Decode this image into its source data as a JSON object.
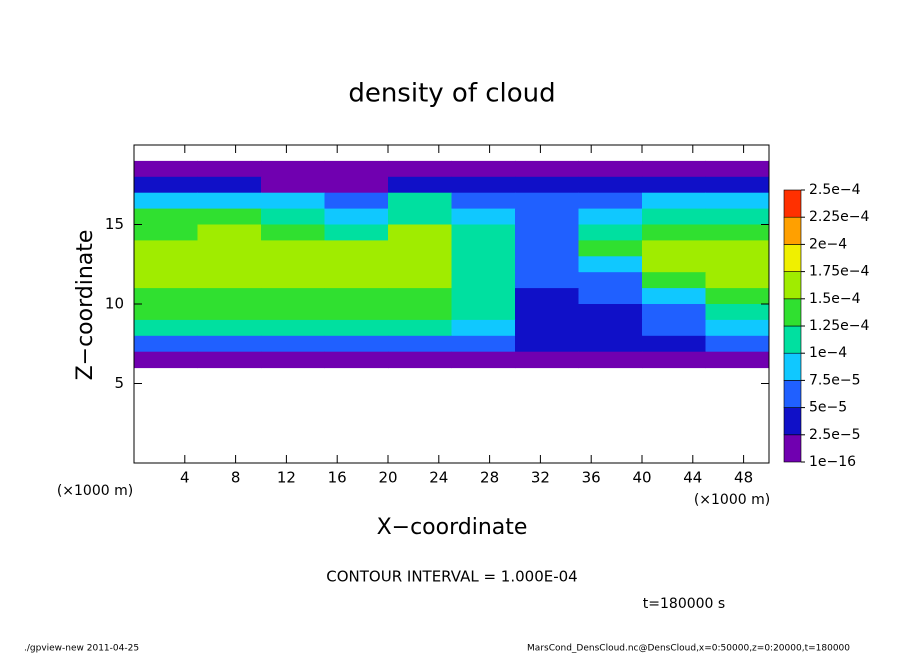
{
  "chart_data": {
    "type": "heatmap",
    "title": "density of cloud",
    "x_label": "X−coordinate",
    "y_label": "Z−coordinate",
    "x_unit": "(×1000 m)",
    "y_unit": "(×1000 m)",
    "note": "CONTOUR INTERVAL = 1.000E-04",
    "time_label": "t=180000 s",
    "footer_left": "./gpview-new  2011-04-25",
    "footer_right": "MarsCond_DensCloud.nc@DensCloud,x=0:50000,z=0:20000,t=180000",
    "xlim": [
      0,
      50
    ],
    "ylim": [
      0,
      20
    ],
    "xticks": [
      4,
      8,
      12,
      16,
      20,
      24,
      28,
      32,
      36,
      40,
      44,
      48
    ],
    "yticks": [
      5,
      10,
      15
    ],
    "x": [
      2.5,
      7.5,
      12.5,
      17.5,
      22.5,
      27.5,
      32.5,
      37.5,
      42.5,
      47.5
    ],
    "z": [
      18.5,
      17.5,
      16.5,
      15.5,
      14.5,
      13.5,
      12.5,
      11.5,
      10.5,
      9.5,
      8.5,
      7.5,
      6.5
    ],
    "values": [
      [
        5e-06,
        5e-06,
        1e-05,
        1e-05,
        1e-05,
        1e-05,
        1e-05,
        5e-06,
        5e-06,
        5e-06
      ],
      [
        3e-05,
        3e-05,
        2e-05,
        2e-05,
        4e-05,
        4e-05,
        3e-05,
        4e-05,
        4e-05,
        3e-05
      ],
      [
        9e-05,
        9e-05,
        8e-05,
        7e-05,
        0.0001,
        6e-05,
        5e-05,
        6e-05,
        8e-05,
        9e-05
      ],
      [
        0.00013,
        0.00013,
        0.00012,
        9e-05,
        0.00012,
        8e-05,
        5e-05,
        9e-05,
        0.00011,
        0.00012
      ],
      [
        0.00014,
        0.00015,
        0.00014,
        0.00012,
        0.00015,
        0.0001,
        5e-05,
        0.00012,
        0.00014,
        0.00014
      ],
      [
        0.00015,
        0.00016,
        0.00015,
        0.00015,
        0.00017,
        0.00012,
        5e-05,
        0.00014,
        0.00015,
        0.00015
      ],
      [
        0.00016,
        0.00016,
        0.00015,
        0.00015,
        0.00016,
        0.00012,
        6e-05,
        8e-05,
        0.00015,
        0.00015
      ],
      [
        0.00015,
        0.00015,
        0.00015,
        0.00015,
        0.00015,
        0.0001,
        5e-05,
        6e-05,
        0.00014,
        0.00015
      ],
      [
        0.00014,
        0.00014,
        0.00014,
        0.00014,
        0.00014,
        0.0001,
        4e-05,
        5e-05,
        8e-05,
        0.00013
      ],
      [
        0.00013,
        0.00013,
        0.00013,
        0.00013,
        0.00013,
        0.0001,
        3e-05,
        4e-05,
        6e-05,
        0.00012
      ],
      [
        0.00011,
        0.00011,
        0.00011,
        0.00011,
        0.00011,
        8e-05,
        3e-05,
        3e-05,
        5e-05,
        9e-05
      ],
      [
        6e-05,
        6e-05,
        6e-05,
        6e-05,
        6e-05,
        5e-05,
        3e-05,
        3e-05,
        3e-05,
        5e-05
      ],
      [
        2e-05,
        2e-05,
        2e-05,
        2e-05,
        1e-05,
        5e-06,
        1e-05,
        1e-05,
        1e-05,
        2e-05
      ]
    ],
    "colorbar": {
      "ticks": [
        {
          "value": 1e-16,
          "label": "1e−16"
        },
        {
          "value": 2.5e-05,
          "label": "2.5e−5"
        },
        {
          "value": 5e-05,
          "label": "5e−5"
        },
        {
          "value": 7.5e-05,
          "label": "7.5e−5"
        },
        {
          "value": 0.0001,
          "label": "1e−4"
        },
        {
          "value": 0.000125,
          "label": "1.25e−4"
        },
        {
          "value": 0.00015,
          "label": "1.5e−4"
        },
        {
          "value": 0.000175,
          "label": "1.75e−4"
        },
        {
          "value": 0.0002,
          "label": "2e−4"
        },
        {
          "value": 0.000225,
          "label": "2.25e−4"
        },
        {
          "value": 0.00025,
          "label": "2.5e−4"
        }
      ],
      "colors": [
        "#7000b0",
        "#1010c8",
        "#2060ff",
        "#10c8ff",
        "#00e0a0",
        "#30e030",
        "#a0ec00",
        "#f0f000",
        "#ffa000",
        "#ff3000"
      ]
    }
  }
}
